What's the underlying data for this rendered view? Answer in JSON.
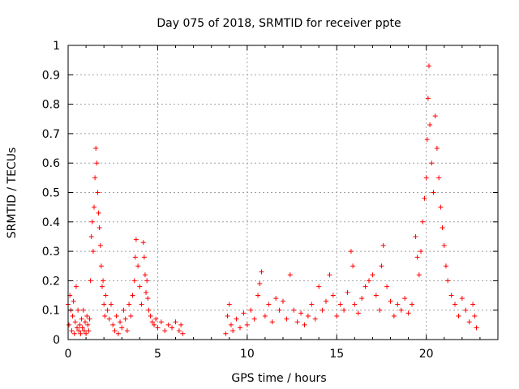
{
  "chart_data": {
    "type": "scatter",
    "title": "Day 075 of 2018, SRMTID for receiver ppte",
    "xlabel": "GPS time / hours",
    "ylabel": "SRMTID / TECUs",
    "xlim": [
      0,
      24
    ],
    "ylim": [
      0,
      1
    ],
    "x_ticks": [
      0,
      5,
      10,
      15,
      20
    ],
    "x_tick_labels": [
      "0",
      "5",
      "10",
      "15",
      "20"
    ],
    "y_ticks": [
      0,
      0.1,
      0.2,
      0.3,
      0.4,
      0.5,
      0.6,
      0.7,
      0.8,
      0.9,
      1
    ],
    "y_tick_labels": [
      "0",
      "0.1",
      "0.2",
      "0.3",
      "0.4",
      "0.5",
      "0.6",
      "0.7",
      "0.8",
      "0.9",
      "1"
    ],
    "grid": true,
    "marker": "+",
    "color": "#ff0000",
    "series": [
      {
        "name": "SRMTID",
        "points": [
          [
            0.0,
            0.12
          ],
          [
            0.05,
            0.05
          ],
          [
            0.1,
            0.15
          ],
          [
            0.15,
            0.1
          ],
          [
            0.2,
            0.03
          ],
          [
            0.25,
            0.08
          ],
          [
            0.3,
            0.13
          ],
          [
            0.35,
            0.02
          ],
          [
            0.4,
            0.06
          ],
          [
            0.45,
            0.18
          ],
          [
            0.5,
            0.04
          ],
          [
            0.55,
            0.1
          ],
          [
            0.6,
            0.03
          ],
          [
            0.65,
            0.05
          ],
          [
            0.7,
            0.02
          ],
          [
            0.75,
            0.07
          ],
          [
            0.8,
            0.04
          ],
          [
            0.85,
            0.1
          ],
          [
            0.9,
            0.03
          ],
          [
            0.95,
            0.06
          ],
          [
            1.0,
            0.02
          ],
          [
            1.05,
            0.08
          ],
          [
            1.1,
            0.05
          ],
          [
            1.15,
            0.03
          ],
          [
            1.2,
            0.07
          ],
          [
            1.25,
            0.2
          ],
          [
            1.3,
            0.35
          ],
          [
            1.35,
            0.4
          ],
          [
            1.4,
            0.3
          ],
          [
            1.45,
            0.45
          ],
          [
            1.5,
            0.55
          ],
          [
            1.55,
            0.65
          ],
          [
            1.6,
            0.6
          ],
          [
            1.65,
            0.5
          ],
          [
            1.7,
            0.43
          ],
          [
            1.75,
            0.38
          ],
          [
            1.8,
            0.32
          ],
          [
            1.85,
            0.25
          ],
          [
            1.9,
            0.18
          ],
          [
            1.95,
            0.2
          ],
          [
            2.0,
            0.12
          ],
          [
            2.05,
            0.08
          ],
          [
            2.1,
            0.15
          ],
          [
            2.2,
            0.1
          ],
          [
            2.3,
            0.07
          ],
          [
            2.4,
            0.12
          ],
          [
            2.5,
            0.05
          ],
          [
            2.6,
            0.03
          ],
          [
            2.7,
            0.08
          ],
          [
            2.8,
            0.02
          ],
          [
            2.9,
            0.06
          ],
          [
            3.0,
            0.04
          ],
          [
            3.1,
            0.1
          ],
          [
            3.2,
            0.07
          ],
          [
            3.3,
            0.03
          ],
          [
            3.4,
            0.12
          ],
          [
            3.5,
            0.08
          ],
          [
            3.6,
            0.15
          ],
          [
            3.7,
            0.2
          ],
          [
            3.75,
            0.28
          ],
          [
            3.8,
            0.34
          ],
          [
            3.9,
            0.25
          ],
          [
            4.0,
            0.18
          ],
          [
            4.1,
            0.12
          ],
          [
            4.2,
            0.33
          ],
          [
            4.25,
            0.28
          ],
          [
            4.3,
            0.22
          ],
          [
            4.35,
            0.16
          ],
          [
            4.4,
            0.2
          ],
          [
            4.45,
            0.14
          ],
          [
            4.5,
            0.1
          ],
          [
            4.6,
            0.08
          ],
          [
            4.7,
            0.06
          ],
          [
            4.8,
            0.05
          ],
          [
            4.9,
            0.07
          ],
          [
            5.0,
            0.04
          ],
          [
            5.2,
            0.06
          ],
          [
            5.4,
            0.03
          ],
          [
            5.6,
            0.05
          ],
          [
            5.8,
            0.04
          ],
          [
            6.0,
            0.06
          ],
          [
            6.2,
            0.03
          ],
          [
            6.3,
            0.05
          ],
          [
            6.4,
            0.02
          ],
          [
            8.8,
            0.02
          ],
          [
            8.9,
            0.08
          ],
          [
            9.0,
            0.12
          ],
          [
            9.1,
            0.05
          ],
          [
            9.2,
            0.03
          ],
          [
            9.4,
            0.07
          ],
          [
            9.6,
            0.04
          ],
          [
            9.8,
            0.09
          ],
          [
            10.0,
            0.05
          ],
          [
            10.2,
            0.1
          ],
          [
            10.4,
            0.07
          ],
          [
            10.6,
            0.15
          ],
          [
            10.7,
            0.19
          ],
          [
            10.8,
            0.23
          ],
          [
            11.0,
            0.08
          ],
          [
            11.2,
            0.12
          ],
          [
            11.4,
            0.06
          ],
          [
            11.6,
            0.14
          ],
          [
            11.8,
            0.1
          ],
          [
            12.0,
            0.13
          ],
          [
            12.2,
            0.07
          ],
          [
            12.4,
            0.22
          ],
          [
            12.6,
            0.1
          ],
          [
            12.8,
            0.06
          ],
          [
            13.0,
            0.09
          ],
          [
            13.2,
            0.05
          ],
          [
            13.4,
            0.08
          ],
          [
            13.6,
            0.12
          ],
          [
            13.8,
            0.07
          ],
          [
            14.0,
            0.18
          ],
          [
            14.2,
            0.1
          ],
          [
            14.4,
            0.13
          ],
          [
            14.6,
            0.22
          ],
          [
            14.8,
            0.15
          ],
          [
            15.0,
            0.08
          ],
          [
            15.2,
            0.12
          ],
          [
            15.4,
            0.1
          ],
          [
            15.6,
            0.16
          ],
          [
            15.8,
            0.3
          ],
          [
            15.9,
            0.25
          ],
          [
            16.0,
            0.12
          ],
          [
            16.2,
            0.09
          ],
          [
            16.4,
            0.14
          ],
          [
            16.6,
            0.18
          ],
          [
            16.8,
            0.2
          ],
          [
            17.0,
            0.22
          ],
          [
            17.2,
            0.15
          ],
          [
            17.4,
            0.1
          ],
          [
            17.5,
            0.25
          ],
          [
            17.6,
            0.32
          ],
          [
            17.8,
            0.18
          ],
          [
            18.0,
            0.13
          ],
          [
            18.2,
            0.08
          ],
          [
            18.4,
            0.12
          ],
          [
            18.6,
            0.1
          ],
          [
            18.8,
            0.14
          ],
          [
            19.0,
            0.09
          ],
          [
            19.2,
            0.12
          ],
          [
            19.4,
            0.35
          ],
          [
            19.5,
            0.28
          ],
          [
            19.6,
            0.22
          ],
          [
            19.7,
            0.3
          ],
          [
            19.8,
            0.4
          ],
          [
            19.9,
            0.48
          ],
          [
            20.0,
            0.55
          ],
          [
            20.05,
            0.68
          ],
          [
            20.1,
            0.82
          ],
          [
            20.15,
            0.93
          ],
          [
            20.2,
            0.73
          ],
          [
            20.3,
            0.6
          ],
          [
            20.4,
            0.5
          ],
          [
            20.5,
            0.76
          ],
          [
            20.6,
            0.65
          ],
          [
            20.7,
            0.55
          ],
          [
            20.8,
            0.45
          ],
          [
            20.9,
            0.38
          ],
          [
            21.0,
            0.32
          ],
          [
            21.1,
            0.25
          ],
          [
            21.2,
            0.2
          ],
          [
            21.4,
            0.15
          ],
          [
            21.6,
            0.12
          ],
          [
            21.8,
            0.08
          ],
          [
            22.0,
            0.14
          ],
          [
            22.2,
            0.1
          ],
          [
            22.4,
            0.06
          ],
          [
            22.6,
            0.12
          ],
          [
            22.7,
            0.08
          ],
          [
            22.8,
            0.04
          ]
        ]
      }
    ]
  }
}
